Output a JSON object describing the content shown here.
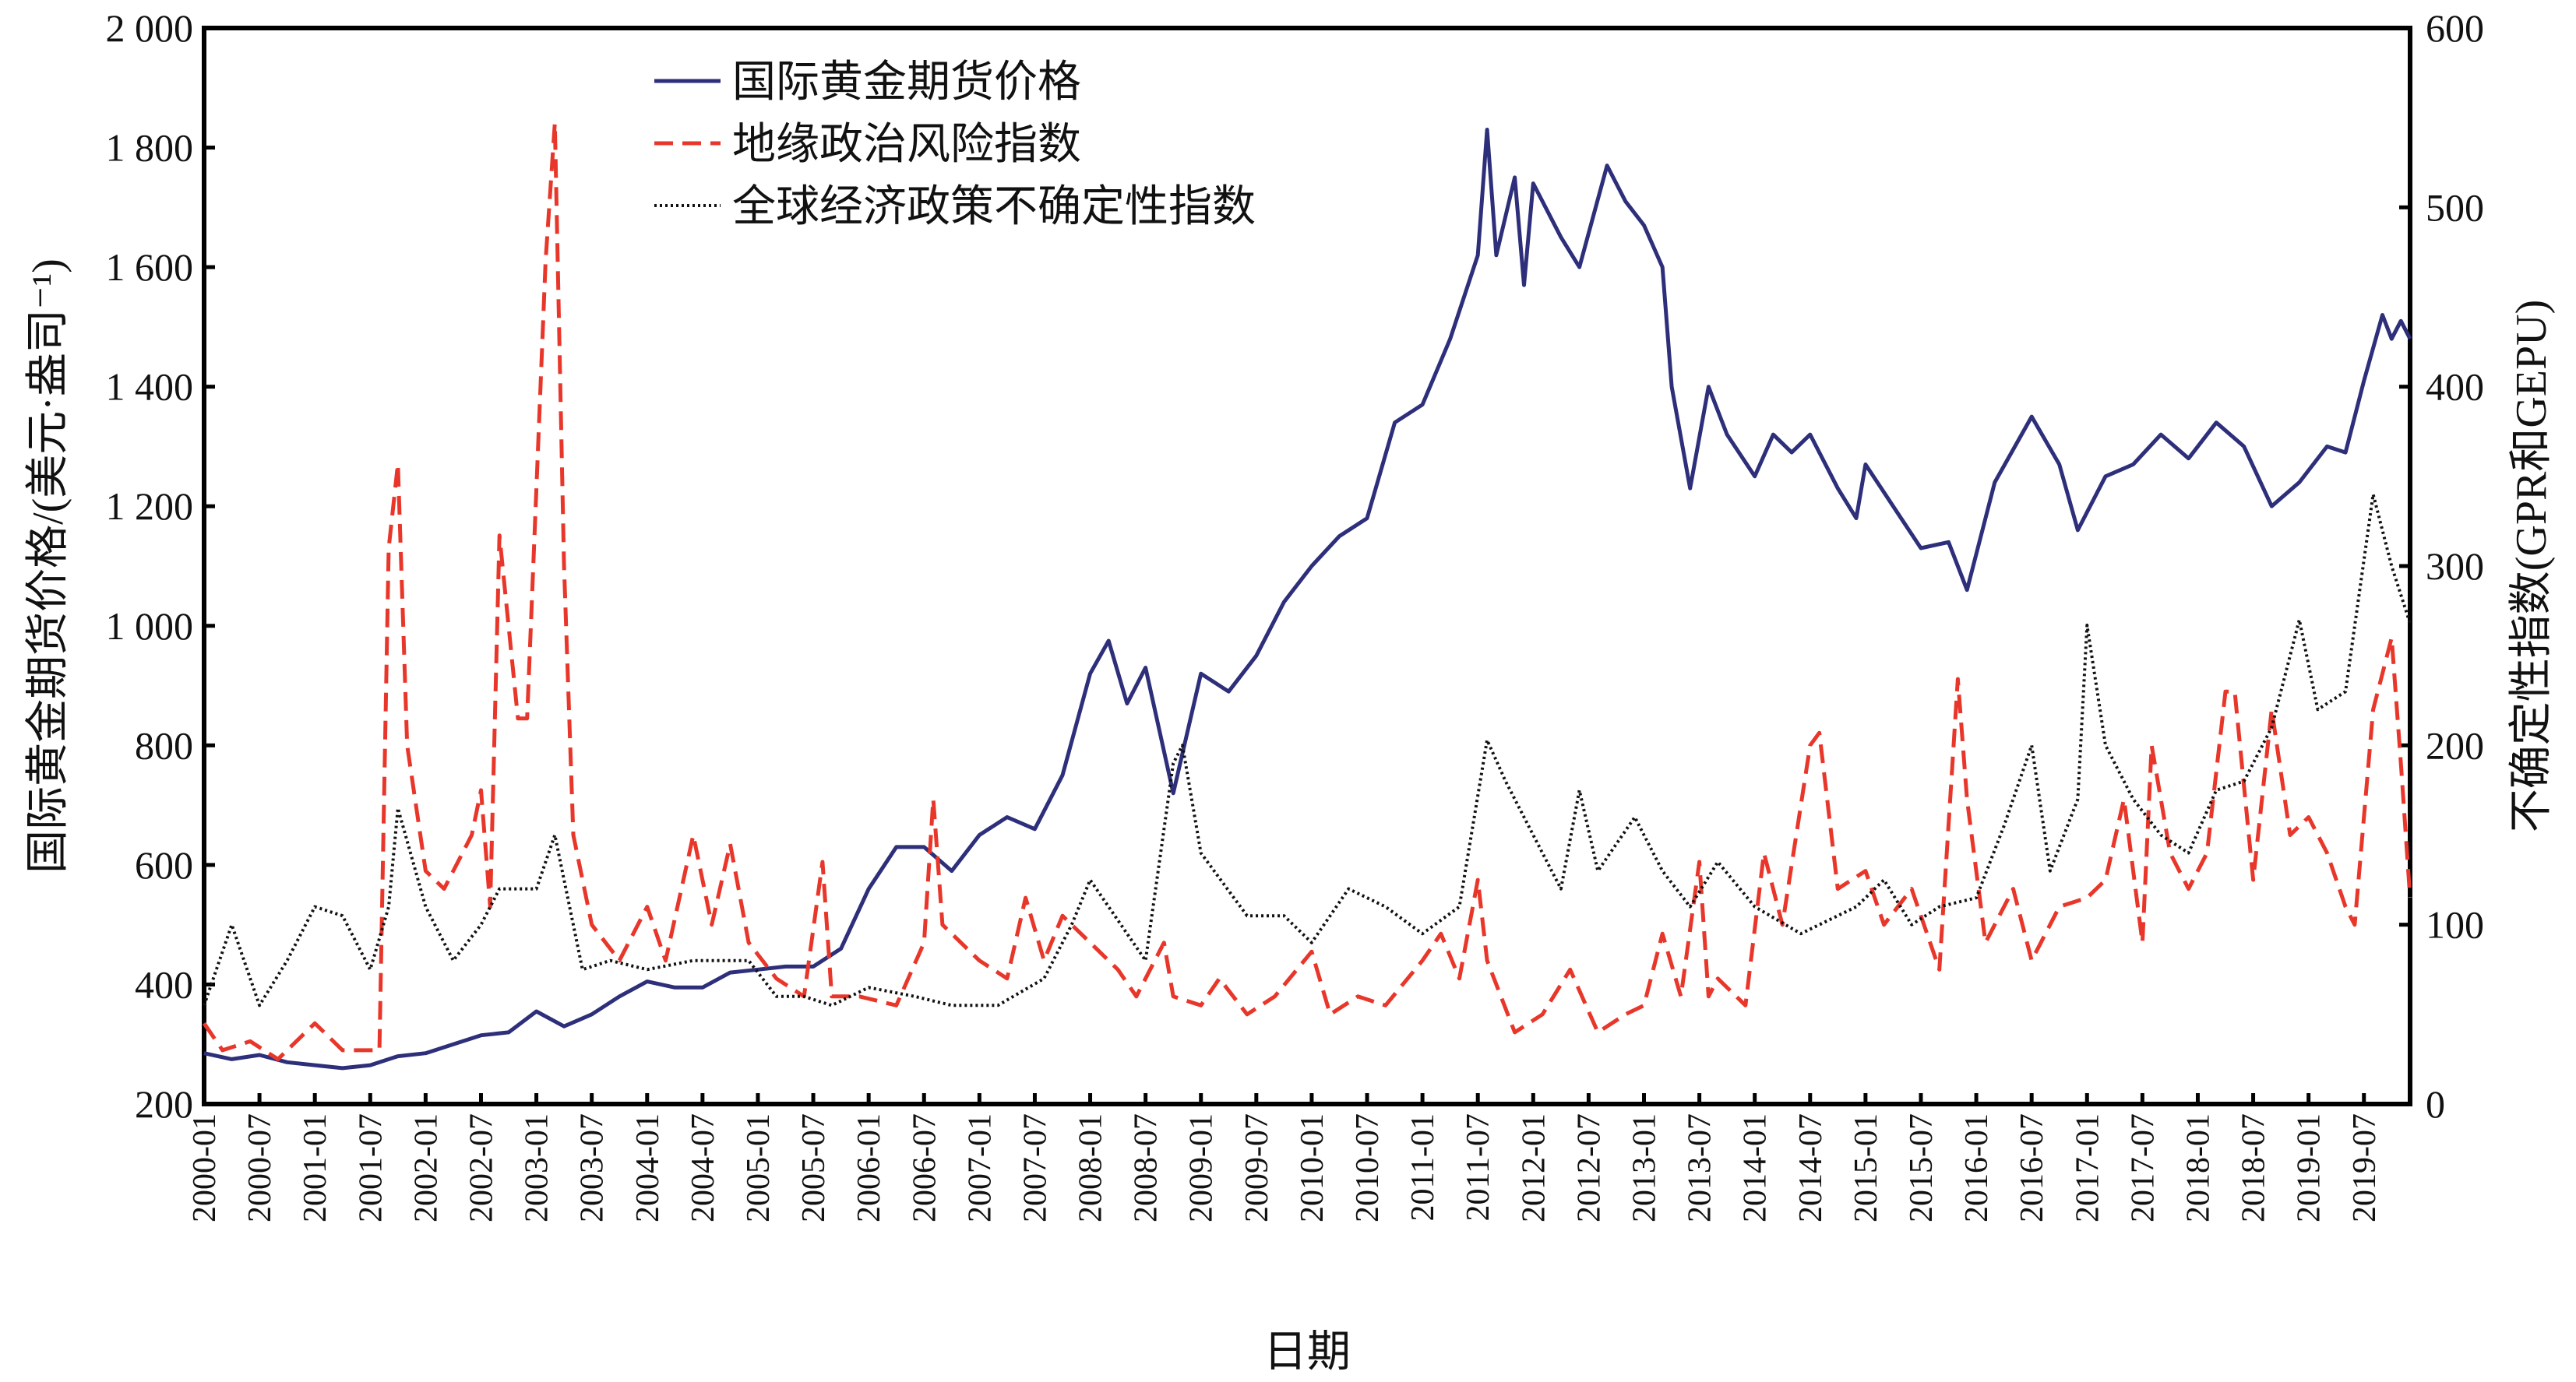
{
  "chart_data": {
    "type": "line",
    "title": "",
    "xlabel": "日期",
    "ylabel_left": "国际黄金期货价格/(美元·盎司⁻¹)",
    "ylabel_right": "不确定性指数(GPR和GEPU)",
    "xlim": [
      "2000-01",
      "2019-12"
    ],
    "ylim_left": [
      200,
      2000
    ],
    "ylim_right": [
      0,
      600
    ],
    "yticks_left": [
      "200",
      "400",
      "600",
      "800",
      "1 000",
      "1 200",
      "1 400",
      "1 600",
      "1 800",
      "2 000"
    ],
    "yticks_right": [
      "0",
      "100",
      "200",
      "300",
      "400",
      "500",
      "600"
    ],
    "xticks": [
      "2000-01",
      "2000-07",
      "2001-01",
      "2001-07",
      "2002-01",
      "2002-07",
      "2003-01",
      "2003-07",
      "2004-01",
      "2004-07",
      "2005-01",
      "2005-07",
      "2006-01",
      "2006-07",
      "2007-01",
      "2007-07",
      "2008-01",
      "2008-07",
      "2009-01",
      "2009-07",
      "2010-01",
      "2010-07",
      "2011-01",
      "2011-07",
      "2012-01",
      "2012-07",
      "2013-01",
      "2013-07",
      "2014-01",
      "2014-07",
      "2015-01",
      "2015-07",
      "2016-01",
      "2016-07",
      "2017-01",
      "2017-07",
      "2018-01",
      "2018-07",
      "2019-01",
      "2019-07"
    ],
    "grid": false,
    "legend_position": "top-center",
    "series": [
      {
        "name": "国际黄金期货价格",
        "axis": "left",
        "style": "solid",
        "color": "#2e2f7a",
        "points": [
          [
            "2000-01",
            285
          ],
          [
            "2000-04",
            275
          ],
          [
            "2000-07",
            282
          ],
          [
            "2000-10",
            270
          ],
          [
            "2001-01",
            265
          ],
          [
            "2001-04",
            260
          ],
          [
            "2001-07",
            265
          ],
          [
            "2001-10",
            280
          ],
          [
            "2002-01",
            285
          ],
          [
            "2002-04",
            300
          ],
          [
            "2002-07",
            315
          ],
          [
            "2002-10",
            320
          ],
          [
            "2003-01",
            355
          ],
          [
            "2003-04",
            330
          ],
          [
            "2003-07",
            350
          ],
          [
            "2003-10",
            380
          ],
          [
            "2004-01",
            405
          ],
          [
            "2004-04",
            395
          ],
          [
            "2004-07",
            395
          ],
          [
            "2004-10",
            420
          ],
          [
            "2005-01",
            425
          ],
          [
            "2005-04",
            430
          ],
          [
            "2005-07",
            430
          ],
          [
            "2005-10",
            460
          ],
          [
            "2006-01",
            560
          ],
          [
            "2006-04",
            630
          ],
          [
            "2006-07",
            630
          ],
          [
            "2006-10",
            590
          ],
          [
            "2007-01",
            650
          ],
          [
            "2007-04",
            680
          ],
          [
            "2007-07",
            660
          ],
          [
            "2007-10",
            750
          ],
          [
            "2008-01",
            920
          ],
          [
            "2008-03",
            975
          ],
          [
            "2008-05",
            870
          ],
          [
            "2008-07",
            930
          ],
          [
            "2008-10",
            720
          ],
          [
            "2009-01",
            920
          ],
          [
            "2009-04",
            890
          ],
          [
            "2009-07",
            950
          ],
          [
            "2009-10",
            1040
          ],
          [
            "2010-01",
            1100
          ],
          [
            "2010-04",
            1150
          ],
          [
            "2010-07",
            1180
          ],
          [
            "2010-10",
            1340
          ],
          [
            "2011-01",
            1370
          ],
          [
            "2011-04",
            1480
          ],
          [
            "2011-07",
            1620
          ],
          [
            "2011-08",
            1830
          ],
          [
            "2011-09",
            1620
          ],
          [
            "2011-11",
            1750
          ],
          [
            "2011-12",
            1570
          ],
          [
            "2012-01",
            1740
          ],
          [
            "2012-04",
            1650
          ],
          [
            "2012-06",
            1600
          ],
          [
            "2012-09",
            1770
          ],
          [
            "2012-11",
            1710
          ],
          [
            "2013-01",
            1670
          ],
          [
            "2013-03",
            1600
          ],
          [
            "2013-04",
            1400
          ],
          [
            "2013-06",
            1230
          ],
          [
            "2013-08",
            1400
          ],
          [
            "2013-10",
            1320
          ],
          [
            "2014-01",
            1250
          ],
          [
            "2014-03",
            1320
          ],
          [
            "2014-05",
            1290
          ],
          [
            "2014-07",
            1320
          ],
          [
            "2014-10",
            1230
          ],
          [
            "2014-12",
            1180
          ],
          [
            "2015-01",
            1270
          ],
          [
            "2015-04",
            1200
          ],
          [
            "2015-07",
            1130
          ],
          [
            "2015-10",
            1140
          ],
          [
            "2015-12",
            1060
          ],
          [
            "2016-03",
            1240
          ],
          [
            "2016-07",
            1350
          ],
          [
            "2016-10",
            1270
          ],
          [
            "2016-12",
            1160
          ],
          [
            "2017-03",
            1250
          ],
          [
            "2017-06",
            1270
          ],
          [
            "2017-09",
            1320
          ],
          [
            "2017-12",
            1280
          ],
          [
            "2018-03",
            1340
          ],
          [
            "2018-06",
            1300
          ],
          [
            "2018-09",
            1200
          ],
          [
            "2018-12",
            1240
          ],
          [
            "2019-03",
            1300
          ],
          [
            "2019-05",
            1290
          ],
          [
            "2019-07",
            1410
          ],
          [
            "2019-09",
            1520
          ],
          [
            "2019-10",
            1480
          ],
          [
            "2019-11",
            1510
          ],
          [
            "2019-12",
            1480
          ]
        ]
      },
      {
        "name": "地缘政治风险指数",
        "axis": "right",
        "style": "dashed",
        "color": "#e8372a",
        "points": [
          [
            "2000-01",
            45
          ],
          [
            "2000-03",
            30
          ],
          [
            "2000-06",
            35
          ],
          [
            "2000-09",
            25
          ],
          [
            "2001-01",
            45
          ],
          [
            "2001-04",
            30
          ],
          [
            "2001-08",
            30
          ],
          [
            "2001-09",
            310
          ],
          [
            "2001-10",
            357
          ],
          [
            "2001-11",
            200
          ],
          [
            "2002-01",
            130
          ],
          [
            "2002-03",
            120
          ],
          [
            "2002-06",
            150
          ],
          [
            "2002-07",
            175
          ],
          [
            "2002-08",
            110
          ],
          [
            "2002-09",
            317
          ],
          [
            "2002-11",
            215
          ],
          [
            "2002-12",
            215
          ],
          [
            "2003-02",
            470
          ],
          [
            "2003-03",
            547
          ],
          [
            "2003-04",
            300
          ],
          [
            "2003-05",
            150
          ],
          [
            "2003-07",
            100
          ],
          [
            "2003-10",
            80
          ],
          [
            "2004-01",
            110
          ],
          [
            "2004-03",
            80
          ],
          [
            "2004-06",
            150
          ],
          [
            "2004-08",
            100
          ],
          [
            "2004-10",
            145
          ],
          [
            "2004-12",
            90
          ],
          [
            "2005-03",
            70
          ],
          [
            "2005-06",
            60
          ],
          [
            "2005-08",
            135
          ],
          [
            "2005-09",
            60
          ],
          [
            "2005-12",
            60
          ],
          [
            "2006-04",
            55
          ],
          [
            "2006-07",
            90
          ],
          [
            "2006-08",
            170
          ],
          [
            "2006-09",
            100
          ],
          [
            "2007-01",
            80
          ],
          [
            "2007-04",
            70
          ],
          [
            "2007-06",
            115
          ],
          [
            "2007-08",
            80
          ],
          [
            "2007-10",
            105
          ],
          [
            "2008-01",
            90
          ],
          [
            "2008-04",
            75
          ],
          [
            "2008-06",
            60
          ],
          [
            "2008-09",
            90
          ],
          [
            "2008-10",
            60
          ],
          [
            "2009-01",
            55
          ],
          [
            "2009-03",
            70
          ],
          [
            "2009-06",
            50
          ],
          [
            "2009-09",
            60
          ],
          [
            "2010-01",
            85
          ],
          [
            "2010-03",
            50
          ],
          [
            "2010-06",
            60
          ],
          [
            "2010-09",
            55
          ],
          [
            "2011-01",
            80
          ],
          [
            "2011-03",
            95
          ],
          [
            "2011-05",
            70
          ],
          [
            "2011-07",
            125
          ],
          [
            "2011-08",
            80
          ],
          [
            "2011-11",
            40
          ],
          [
            "2012-02",
            50
          ],
          [
            "2012-05",
            75
          ],
          [
            "2012-08",
            40
          ],
          [
            "2012-11",
            50
          ],
          [
            "2013-01",
            55
          ],
          [
            "2013-03",
            95
          ],
          [
            "2013-05",
            60
          ],
          [
            "2013-07",
            135
          ],
          [
            "2013-08",
            60
          ],
          [
            "2013-09",
            70
          ],
          [
            "2013-12",
            55
          ],
          [
            "2014-02",
            140
          ],
          [
            "2014-04",
            100
          ],
          [
            "2014-07",
            200
          ],
          [
            "2014-08",
            207
          ],
          [
            "2014-10",
            120
          ],
          [
            "2015-01",
            130
          ],
          [
            "2015-03",
            100
          ],
          [
            "2015-06",
            120
          ],
          [
            "2015-09",
            75
          ],
          [
            "2015-11",
            237
          ],
          [
            "2015-12",
            170
          ],
          [
            "2016-02",
            90
          ],
          [
            "2016-05",
            120
          ],
          [
            "2016-07",
            80
          ],
          [
            "2016-10",
            110
          ],
          [
            "2017-01",
            115
          ],
          [
            "2017-03",
            125
          ],
          [
            "2017-05",
            170
          ],
          [
            "2017-07",
            90
          ],
          [
            "2017-08",
            200
          ],
          [
            "2017-10",
            140
          ],
          [
            "2017-12",
            120
          ],
          [
            "2018-02",
            140
          ],
          [
            "2018-04",
            230
          ],
          [
            "2018-05",
            230
          ],
          [
            "2018-07",
            125
          ],
          [
            "2018-09",
            220
          ],
          [
            "2018-11",
            150
          ],
          [
            "2019-01",
            160
          ],
          [
            "2019-03",
            140
          ],
          [
            "2019-05",
            110
          ],
          [
            "2019-06",
            100
          ],
          [
            "2019-08",
            220
          ],
          [
            "2019-09",
            240
          ],
          [
            "2019-10",
            260
          ],
          [
            "2019-11",
            190
          ],
          [
            "2019-12",
            115
          ]
        ]
      },
      {
        "name": "全球经济政策不确定性指数",
        "axis": "right",
        "style": "dotted",
        "color": "#111111",
        "points": [
          [
            "2000-01",
            55
          ],
          [
            "2000-04",
            100
          ],
          [
            "2000-07",
            55
          ],
          [
            "2000-10",
            80
          ],
          [
            "2001-01",
            110
          ],
          [
            "2001-04",
            105
          ],
          [
            "2001-07",
            75
          ],
          [
            "2001-09",
            110
          ],
          [
            "2001-10",
            165
          ],
          [
            "2002-01",
            110
          ],
          [
            "2002-04",
            80
          ],
          [
            "2002-07",
            100
          ],
          [
            "2002-09",
            120
          ],
          [
            "2003-01",
            120
          ],
          [
            "2003-03",
            150
          ],
          [
            "2003-06",
            75
          ],
          [
            "2003-09",
            80
          ],
          [
            "2004-01",
            75
          ],
          [
            "2004-06",
            80
          ],
          [
            "2004-12",
            80
          ],
          [
            "2005-03",
            60
          ],
          [
            "2005-06",
            60
          ],
          [
            "2005-09",
            55
          ],
          [
            "2006-01",
            65
          ],
          [
            "2006-06",
            60
          ],
          [
            "2006-10",
            55
          ],
          [
            "2007-03",
            55
          ],
          [
            "2007-08",
            70
          ],
          [
            "2007-11",
            100
          ],
          [
            "2008-01",
            125
          ],
          [
            "2008-03",
            110
          ],
          [
            "2008-07",
            80
          ],
          [
            "2008-10",
            190
          ],
          [
            "2008-11",
            200
          ],
          [
            "2009-01",
            140
          ],
          [
            "2009-06",
            105
          ],
          [
            "2009-10",
            105
          ],
          [
            "2010-01",
            90
          ],
          [
            "2010-05",
            120
          ],
          [
            "2010-09",
            110
          ],
          [
            "2011-01",
            95
          ],
          [
            "2011-05",
            110
          ],
          [
            "2011-08",
            203
          ],
          [
            "2011-10",
            180
          ],
          [
            "2012-01",
            150
          ],
          [
            "2012-04",
            120
          ],
          [
            "2012-06",
            175
          ],
          [
            "2012-08",
            130
          ],
          [
            "2012-12",
            160
          ],
          [
            "2013-03",
            130
          ],
          [
            "2013-06",
            110
          ],
          [
            "2013-09",
            135
          ],
          [
            "2014-01",
            110
          ],
          [
            "2014-06",
            95
          ],
          [
            "2014-12",
            110
          ],
          [
            "2015-03",
            125
          ],
          [
            "2015-06",
            100
          ],
          [
            "2015-09",
            110
          ],
          [
            "2016-01",
            115
          ],
          [
            "2016-04",
            155
          ],
          [
            "2016-06",
            185
          ],
          [
            "2016-07",
            200
          ],
          [
            "2016-09",
            130
          ],
          [
            "2016-12",
            170
          ],
          [
            "2017-01",
            267
          ],
          [
            "2017-03",
            200
          ],
          [
            "2017-06",
            170
          ],
          [
            "2017-09",
            150
          ],
          [
            "2017-12",
            140
          ],
          [
            "2018-03",
            175
          ],
          [
            "2018-06",
            180
          ],
          [
            "2018-09",
            210
          ],
          [
            "2018-12",
            270
          ],
          [
            "2019-02",
            220
          ],
          [
            "2019-05",
            230
          ],
          [
            "2019-08",
            340
          ],
          [
            "2019-10",
            300
          ],
          [
            "2019-12",
            268
          ]
        ]
      }
    ]
  }
}
